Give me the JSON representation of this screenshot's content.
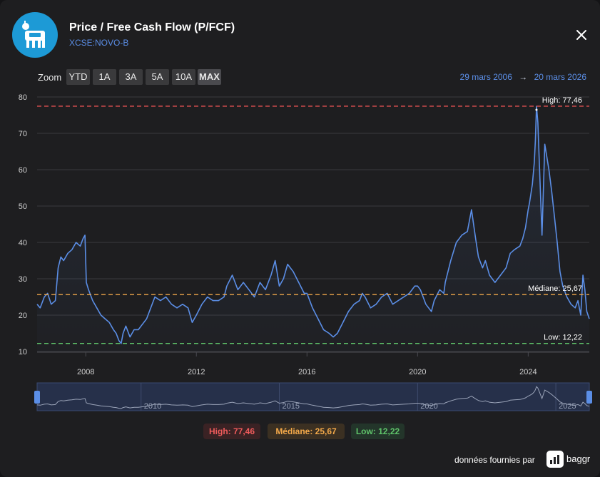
{
  "header": {
    "title": "Price / Free Cash Flow (P/FCF)",
    "ticker": "XCSE:NOVO-B",
    "close_label": "close"
  },
  "zoom": {
    "label": "Zoom",
    "buttons": [
      "YTD",
      "1A",
      "3A",
      "5A",
      "10A",
      "MAX"
    ],
    "active": "MAX"
  },
  "date_range": {
    "from": "29 mars 2006",
    "arrow": "→",
    "to": "20 mars 2026"
  },
  "chart_data": {
    "type": "line",
    "title": "Price / Free Cash Flow (P/FCF)",
    "xlabel": "",
    "ylabel": "",
    "x_tick_labels": [
      "2008",
      "2012",
      "2016",
      "2020",
      "2024"
    ],
    "x_tick_years": [
      2008,
      2012,
      2016,
      2020,
      2024
    ],
    "y_ticks": [
      10,
      20,
      30,
      40,
      50,
      60,
      70,
      80
    ],
    "xlim": [
      2006.24,
      2026.21
    ],
    "ylim": [
      10,
      80
    ],
    "grid": true,
    "series": [
      {
        "name": "P/FCF",
        "color": "#5b8ee6",
        "x": [
          2006.24,
          2006.35,
          2006.5,
          2006.62,
          2006.75,
          2006.9,
          2007.0,
          2007.1,
          2007.2,
          2007.35,
          2007.5,
          2007.65,
          2007.8,
          2007.9,
          2007.97,
          2008.02,
          2008.1,
          2008.25,
          2008.4,
          2008.55,
          2008.7,
          2008.85,
          2009.0,
          2009.1,
          2009.2,
          2009.28,
          2009.35,
          2009.45,
          2009.6,
          2009.75,
          2009.9,
          2010.0,
          2010.2,
          2010.35,
          2010.5,
          2010.7,
          2010.9,
          2011.1,
          2011.3,
          2011.5,
          2011.7,
          2011.85,
          2012.0,
          2012.2,
          2012.4,
          2012.6,
          2012.8,
          2013.0,
          2013.1,
          2013.3,
          2013.5,
          2013.7,
          2013.9,
          2014.1,
          2014.3,
          2014.5,
          2014.7,
          2014.85,
          2015.0,
          2015.15,
          2015.3,
          2015.5,
          2015.7,
          2015.9,
          2016.0,
          2016.2,
          2016.4,
          2016.6,
          2016.8,
          2016.95,
          2017.1,
          2017.3,
          2017.5,
          2017.7,
          2017.9,
          2018.0,
          2018.1,
          2018.3,
          2018.5,
          2018.7,
          2018.9,
          2019.1,
          2019.3,
          2019.5,
          2019.7,
          2019.9,
          2020.0,
          2020.1,
          2020.2,
          2020.3,
          2020.4,
          2020.5,
          2020.6,
          2020.8,
          2020.95,
          2021.0,
          2021.2,
          2021.4,
          2021.6,
          2021.8,
          2021.95,
          2022.1,
          2022.2,
          2022.35,
          2022.45,
          2022.6,
          2022.8,
          2023.0,
          2023.2,
          2023.35,
          2023.5,
          2023.7,
          2023.8,
          2023.9,
          2024.0,
          2024.05,
          2024.15,
          2024.22,
          2024.26,
          2024.3,
          2024.35,
          2024.5,
          2024.6,
          2024.75,
          2024.85,
          2024.95,
          2025.05,
          2025.15,
          2025.25,
          2025.4,
          2025.55,
          2025.7,
          2025.8,
          2025.9,
          2025.98,
          2026.05,
          2026.12,
          2026.21
        ],
        "y": [
          23,
          22,
          25,
          26,
          23,
          24,
          33,
          36,
          35,
          37,
          38,
          40,
          39,
          41,
          42,
          29,
          27,
          24,
          22,
          20,
          19,
          18,
          16,
          15,
          13,
          12.2,
          15,
          17,
          14,
          16,
          16,
          17,
          19,
          22,
          25,
          24,
          25,
          23,
          22,
          23,
          22,
          18,
          20,
          23,
          25,
          24,
          24,
          25,
          28,
          31,
          27,
          29,
          27,
          25,
          29,
          27,
          31,
          35,
          28,
          30,
          34,
          32,
          29,
          26,
          26,
          22,
          19,
          16,
          15,
          14,
          15,
          18,
          21,
          23,
          24,
          26,
          25,
          22,
          23,
          25,
          26,
          23,
          24,
          25,
          26,
          28,
          28,
          27,
          25,
          23,
          22,
          21,
          24,
          27,
          26,
          29,
          35,
          40,
          42,
          43,
          49,
          41,
          36,
          33,
          35,
          31,
          29,
          31,
          33,
          37,
          38,
          39,
          41,
          44,
          49,
          51,
          56,
          62,
          68,
          77.46,
          73,
          42,
          67,
          60,
          54,
          47,
          40,
          32,
          28,
          25,
          23,
          22,
          24,
          20,
          31,
          27,
          21,
          19
        ]
      }
    ],
    "reference_lines": [
      {
        "name": "High",
        "label": "High: 77,46",
        "value": 77.46,
        "color": "#e85252"
      },
      {
        "name": "Médiane",
        "label": "Médiane: 25,67",
        "value": 25.67,
        "color": "#f3a94a"
      },
      {
        "name": "Low",
        "label": "Low: 12,22",
        "value": 12.22,
        "color": "#5fc36a"
      }
    ],
    "navigator_tick_labels": [
      "2010",
      "2015",
      "2020",
      "2025"
    ],
    "navigator_tick_years": [
      2010,
      2015,
      2020,
      2025
    ]
  },
  "legend": {
    "high": "High: 77,46",
    "median": "Médiane: 25,67",
    "low": "Low: 12,22"
  },
  "footer": {
    "credit": "données fournies par",
    "brand": "baggr"
  }
}
